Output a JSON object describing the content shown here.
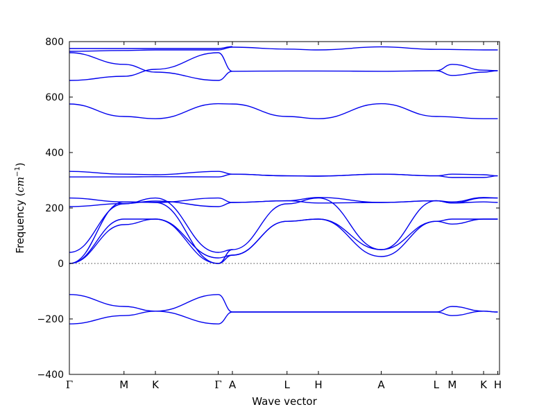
{
  "chart_data": {
    "type": "line",
    "title": "",
    "xlabel": "Wave vector",
    "ylabel": "Frequency (cm⁻¹)",
    "ylabel_parts": {
      "text": "Frequency (",
      "unit_base": "cm",
      "unit_exp": "−1",
      "close": ")"
    },
    "ylim": [
      -400,
      800
    ],
    "yticks": [
      -400,
      -200,
      0,
      200,
      400,
      600,
      800
    ],
    "zero_line": {
      "y": 0,
      "style": "dotted"
    },
    "grid": false,
    "line_color": "#0000ee",
    "kpoints": [
      {
        "label": "Γ",
        "x": 0.0
      },
      {
        "label": "M",
        "x": 0.127
      },
      {
        "label": "K",
        "x": 0.2
      },
      {
        "label": "Γ",
        "x": 0.346
      },
      {
        "label": "A",
        "x": 0.379
      },
      {
        "label": "L",
        "x": 0.506
      },
      {
        "label": "H",
        "x": 0.579
      },
      {
        "label": "A",
        "x": 0.725
      },
      {
        "label": "L",
        "x": 0.853
      },
      {
        "label": "M",
        "x": 0.89
      },
      {
        "label": "K",
        "x": 0.963
      },
      {
        "label": "H",
        "x": 0.996
      }
    ],
    "xlim": [
      0,
      1
    ],
    "series": [
      {
        "x": [
          0,
          0.127,
          0.2,
          0.346,
          0.379
        ],
        "values": [
          760,
          718,
          690,
          660,
          693
        ]
      },
      {
        "x": [
          0,
          0.127,
          0.2,
          0.346,
          0.379
        ],
        "values": [
          660,
          675,
          700,
          760,
          693
        ]
      },
      {
        "x": [
          0,
          0.127,
          0.2,
          0.346,
          0.379,
          0.506,
          0.579,
          0.725,
          0.853,
          0.963,
          0.996
        ],
        "values": [
          765,
          768,
          770,
          770,
          780,
          773,
          770,
          781,
          772,
          770,
          770
        ]
      },
      {
        "x": [
          0,
          0.346,
          0.379
        ],
        "values": [
          775,
          775,
          782
        ]
      },
      {
        "x": [
          0.379,
          0.506,
          0.579,
          0.725,
          0.853
        ],
        "values": [
          693,
          694,
          694,
          693,
          695
        ]
      },
      {
        "x": [
          0.853,
          0.89,
          0.963,
          0.996
        ],
        "values": [
          695,
          718,
          697,
          695
        ]
      },
      {
        "x": [
          0.853,
          0.89,
          0.963,
          0.996
        ],
        "values": [
          695,
          678,
          690,
          695
        ]
      },
      {
        "x": [
          0,
          0.127,
          0.2,
          0.346,
          0.379,
          0.506,
          0.579,
          0.725,
          0.853,
          0.963,
          0.996
        ],
        "values": [
          575,
          530,
          522,
          576,
          575,
          530,
          522,
          576,
          530,
          522,
          522
        ]
      },
      {
        "x": [
          0,
          0.127,
          0.2,
          0.346,
          0.379,
          0.506,
          0.579,
          0.725,
          0.853,
          0.89,
          0.963,
          0.996
        ],
        "values": [
          332,
          322,
          320,
          332,
          322,
          316,
          315,
          322,
          316,
          322,
          320,
          316
        ]
      },
      {
        "x": [
          0,
          0.127,
          0.2,
          0.346,
          0.379,
          0.506,
          0.579,
          0.725,
          0.853,
          0.89,
          0.963,
          0.996
        ],
        "values": [
          312,
          312,
          313,
          312,
          322,
          316,
          315,
          322,
          316,
          310,
          310,
          316
        ]
      },
      {
        "x": [
          0,
          0.127,
          0.2,
          0.346,
          0.379,
          0.506,
          0.579,
          0.725,
          0.853,
          0.89,
          0.963,
          0.996
        ],
        "values": [
          236,
          222,
          220,
          236,
          220,
          226,
          238,
          220,
          226,
          222,
          238,
          236
        ]
      },
      {
        "x": [
          0,
          0.127,
          0.2,
          0.346,
          0.379,
          0.506,
          0.579,
          0.725,
          0.853,
          0.89,
          0.963,
          0.996
        ],
        "values": [
          205,
          216,
          225,
          205,
          220,
          226,
          218,
          220,
          226,
          218,
          222,
          220
        ]
      },
      {
        "x": [
          0,
          0.127,
          0.2,
          0.346,
          0.379,
          0.506,
          0.579,
          0.725,
          0.853,
          0.89,
          0.963,
          0.996
        ],
        "values": [
          40,
          215,
          236,
          40,
          50,
          215,
          236,
          50,
          226,
          218,
          236,
          236
        ]
      },
      {
        "x": [
          0,
          0.127,
          0.2,
          0.346,
          0.379,
          0.506,
          0.579,
          0.725,
          0.853,
          0.89,
          0.963,
          0.996
        ],
        "values": [
          0,
          222,
          220,
          0,
          30,
          152,
          160,
          25,
          152,
          160,
          160,
          160
        ]
      },
      {
        "x": [
          0,
          0.127,
          0.2,
          0.346,
          0.379
        ],
        "values": [
          0,
          160,
          160,
          0,
          50
        ]
      },
      {
        "x": [
          0,
          0.127,
          0.2,
          0.346,
          0.379,
          0.506,
          0.579,
          0.725,
          0.853,
          0.89,
          0.963,
          0.996
        ],
        "values": [
          0,
          140,
          160,
          20,
          30,
          152,
          160,
          50,
          152,
          142,
          160,
          160
        ]
      },
      {
        "x": [
          0,
          0.127,
          0.2,
          0.346,
          0.379,
          0.506,
          0.579,
          0.725,
          0.853,
          0.89,
          0.963,
          0.996
        ],
        "values": [
          -112,
          -155,
          -172,
          -112,
          -175,
          -175,
          -175,
          -175,
          -175,
          -155,
          -172,
          -175
        ]
      },
      {
        "x": [
          0,
          0.127,
          0.2,
          0.346,
          0.379,
          0.506,
          0.579,
          0.725,
          0.853,
          0.89,
          0.963,
          0.996
        ],
        "values": [
          -218,
          -188,
          -172,
          -218,
          -175,
          -175,
          -175,
          -175,
          -175,
          -188,
          -172,
          -175
        ]
      }
    ]
  }
}
